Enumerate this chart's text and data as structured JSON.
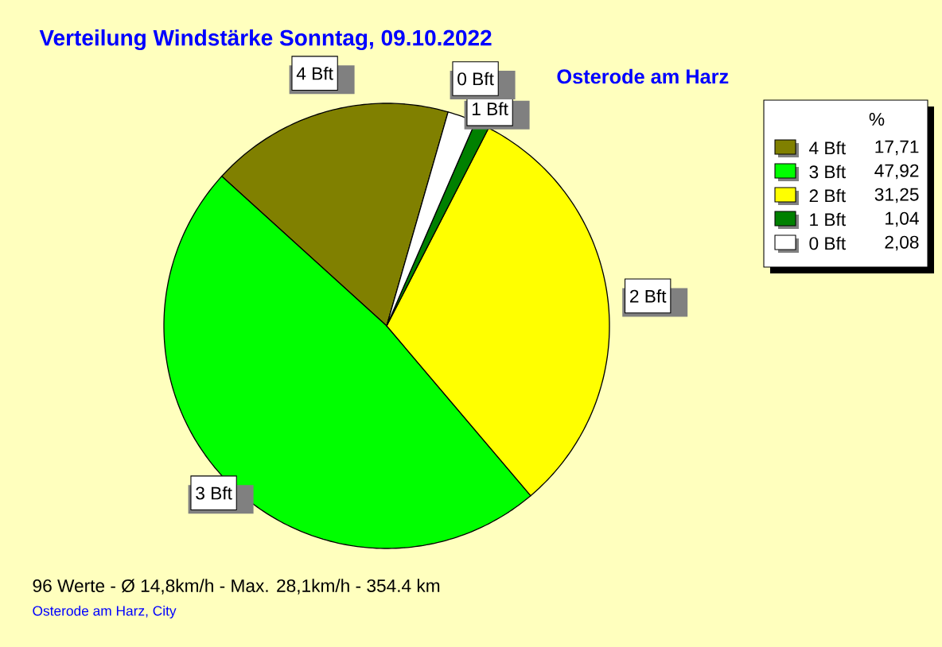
{
  "chart_data": {
    "type": "pie",
    "title": "Verteilung Windstärke  Sonntag, 09.10.2022",
    "subtitle": "Osterode am Harz",
    "categories": [
      "4 Bft",
      "3 Bft",
      "2 Bft",
      "1 Bft",
      "0 Bft"
    ],
    "values": [
      17.71,
      47.92,
      31.25,
      1.04,
      2.08
    ],
    "value_labels": [
      "17,71",
      "47,92",
      "31,25",
      "1,04",
      "2,08"
    ],
    "colors": [
      "#808000",
      "#00ff00",
      "#ffff00",
      "#008000",
      "#ffffff"
    ],
    "legend": "top right",
    "legend_title": "%",
    "annotations": [
      "96 Werte   -   Ø 14,8km/h  -  Max. 28,1km/h   -   354.4 km",
      "Osterode am Harz, City"
    ]
  }
}
